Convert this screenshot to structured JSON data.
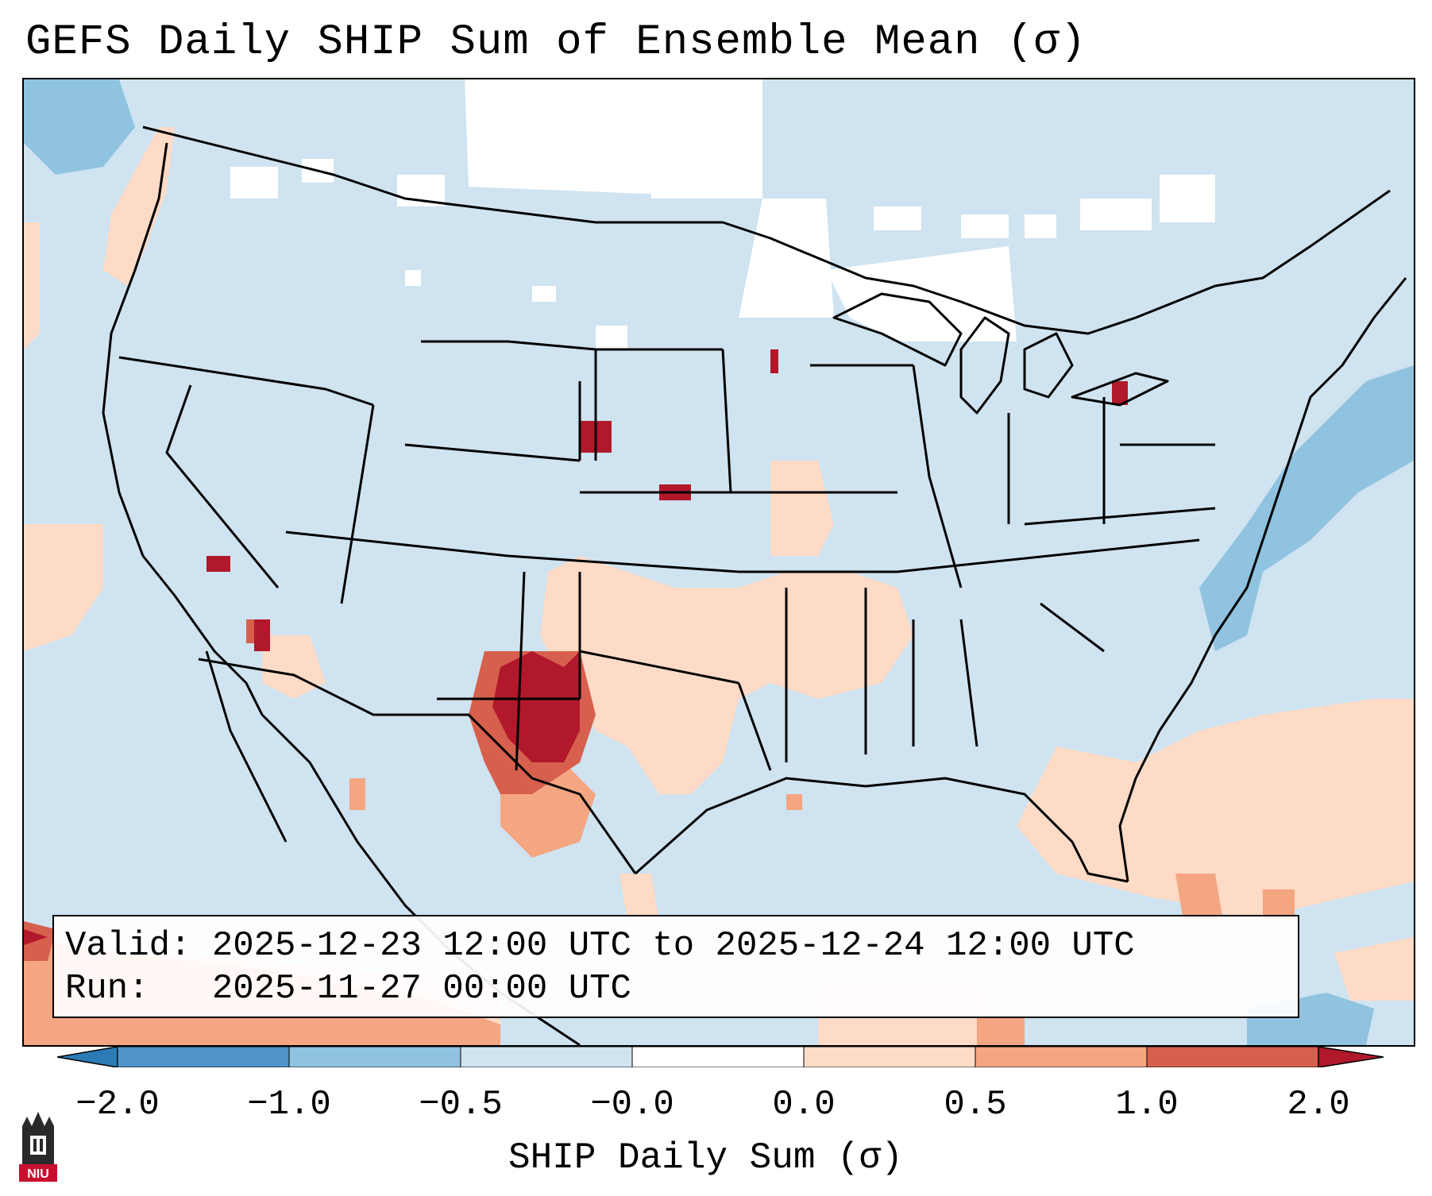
{
  "title": "GEFS Daily SHIP Sum of Ensemble Mean (σ)",
  "info": {
    "valid_key": "Valid:",
    "valid_value": "2025-12-23 12:00 UTC to 2025-12-24 12:00 UTC",
    "run_key": "Run:",
    "run_value": "2025-11-27 00:00 UTC"
  },
  "colorbar": {
    "label": "SHIP Daily Sum (σ)",
    "ticks": [
      "−2.0",
      "−1.0",
      "−0.5",
      "−0.0",
      "0.0",
      "0.5",
      "1.0",
      "2.0"
    ],
    "colors": [
      "#2c7bb6",
      "#4f95c9",
      "#8fc3df",
      "#cfe3f0",
      "#ffffff",
      "#fddbc7",
      "#f4a582",
      "#d6604d",
      "#b2182b"
    ]
  },
  "logo": {
    "text": "NIU",
    "icon": "niu-tower-icon"
  },
  "map_palette": {
    "ocean": "#cfe3f0",
    "no_data": "#ffffff",
    "negative_strong": "#8fc3df",
    "positive_weak": "#fddbc7",
    "positive_moderate": "#f4a582",
    "positive_high": "#d6604d",
    "positive_extreme": "#b2182b",
    "state_lines": "#000000"
  }
}
